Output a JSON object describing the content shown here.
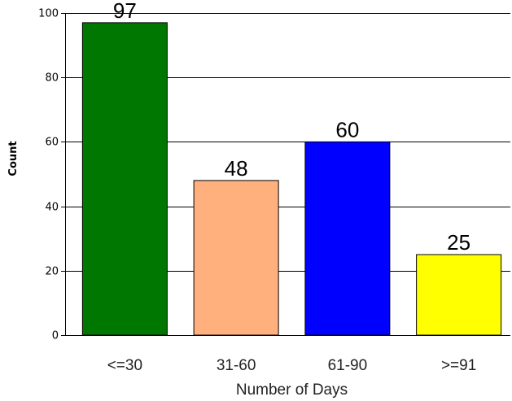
{
  "chart_data": {
    "type": "bar",
    "categories": [
      "<=30",
      "31-60",
      "61-90",
      ">=91"
    ],
    "values": [
      97,
      48,
      60,
      25
    ],
    "colors": [
      "#007700",
      "#ffb07c",
      "#0000ff",
      "#ffff00"
    ],
    "xlabel": "Number of Days",
    "ylabel": "Count",
    "ylim": [
      0,
      100
    ],
    "yticks": [
      0,
      20,
      40,
      60,
      80,
      100
    ],
    "grid": true,
    "data_labels": true,
    "legend": "none"
  }
}
